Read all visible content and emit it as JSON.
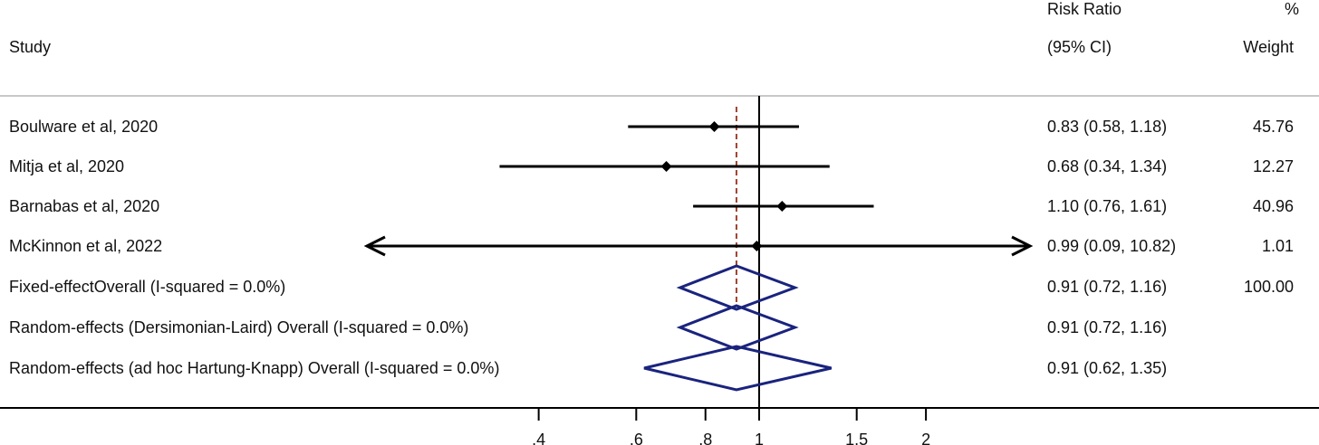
{
  "header": {
    "study": "Study",
    "effect_line1": "Risk Ratio",
    "effect_line2": "(95% CI)",
    "weight_line1": "%",
    "weight_line2": "Weight"
  },
  "chart_data": {
    "type": "forest",
    "x_scale": "log",
    "xlim": [
      0.4,
      2
    ],
    "null_line": 1,
    "overall_dashed_line": 0.91,
    "x_ticks": [
      0.4,
      0.6,
      0.8,
      1,
      1.5,
      2
    ],
    "x_tick_labels": [
      ".4",
      ".6",
      ".8",
      "1",
      "1.5",
      "2"
    ],
    "studies": [
      {
        "label": "Boulware et al, 2020",
        "rr": 0.83,
        "lo": 0.58,
        "hi": 1.18,
        "ci_text": "0.83 (0.58, 1.18)",
        "weight": "45.76",
        "arrow_left": false,
        "arrow_right": false
      },
      {
        "label": "Mitja et al, 2020",
        "rr": 0.68,
        "lo": 0.34,
        "hi": 1.34,
        "ci_text": "0.68 (0.34, 1.34)",
        "weight": "12.27",
        "arrow_left": false,
        "arrow_right": false
      },
      {
        "label": "Barnabas et al, 2020",
        "rr": 1.1,
        "lo": 0.76,
        "hi": 1.61,
        "ci_text": "1.10 (0.76, 1.61)",
        "weight": "40.96",
        "arrow_left": false,
        "arrow_right": false
      },
      {
        "label": "McKinnon et al, 2022",
        "rr": 0.99,
        "lo": 0.09,
        "hi": 10.82,
        "ci_text": "0.99 (0.09, 10.82)",
        "weight": "1.01",
        "arrow_left": true,
        "arrow_right": true
      }
    ],
    "pooled": [
      {
        "label": "Fixed-effectOverall (I-squared = 0.0%)",
        "rr": 0.91,
        "lo": 0.72,
        "hi": 1.16,
        "ci_text": "0.91 (0.72, 1.16)",
        "weight": "100.00"
      },
      {
        "label": "Random-effects (Dersimonian-Laird) Overall (I-squared = 0.0%)",
        "rr": 0.91,
        "lo": 0.72,
        "hi": 1.16,
        "ci_text": "0.91 (0.72, 1.16)",
        "weight": ""
      },
      {
        "label": "Random-effects (ad hoc Hartung-Knapp) Overall (I-squared = 0.0%)",
        "rr": 0.91,
        "lo": 0.62,
        "hi": 1.35,
        "ci_text": "0.91 (0.62, 1.35)",
        "weight": ""
      }
    ],
    "colors": {
      "diamond": "#1a237e",
      "dashed_line": "#a0422f",
      "ci_line": "#000000",
      "separator": "#c8c8c8"
    }
  }
}
